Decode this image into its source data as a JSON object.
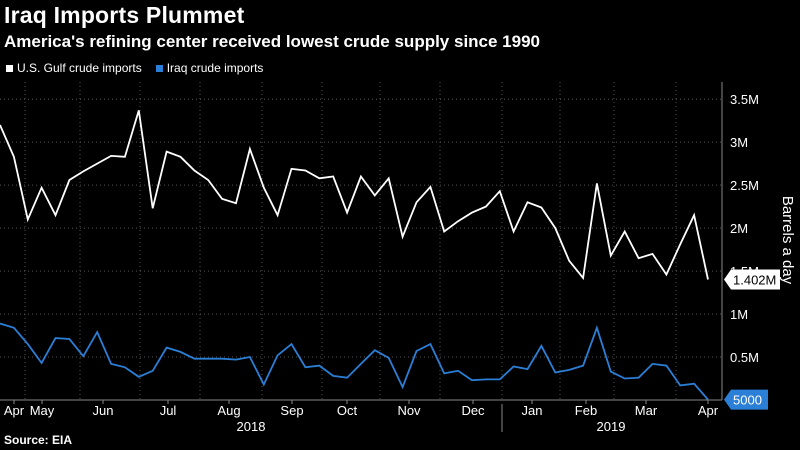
{
  "title": "Iraq Imports Plummet",
  "subtitle": "America's refining center received lowest crude supply since 1990",
  "source": "Source: EIA",
  "colors": {
    "gulf": "#ffffff",
    "iraq": "#2b7fd6",
    "grid": "#555555"
  },
  "chart_data": {
    "type": "line",
    "ylabel": "Barrels a day",
    "ylim": [
      0,
      3700000
    ],
    "y_ticks": [
      {
        "value": 500000,
        "label": "0.5M"
      },
      {
        "value": 1000000,
        "label": "1M"
      },
      {
        "value": 1500000,
        "label": "1.5M"
      },
      {
        "value": 2000000,
        "label": "2M"
      },
      {
        "value": 2500000,
        "label": "2.5M"
      },
      {
        "value": 3000000,
        "label": "3M"
      },
      {
        "value": 3500000,
        "label": "3.5M"
      }
    ],
    "x_ticks": [
      "Apr",
      "May",
      "Jun",
      "Jul",
      "Aug",
      "Sep",
      "Oct",
      "Nov",
      "Dec",
      "Jan",
      "Feb",
      "Mar",
      "Apr"
    ],
    "year_labels": [
      "2018",
      "2019"
    ],
    "grid": true,
    "legend_position": "top-left",
    "series": [
      {
        "name": "U.S. Gulf crude imports",
        "end_label": "1.402M",
        "values": [
          3200000,
          2830000,
          2100000,
          2470000,
          2150000,
          2560000,
          2660000,
          2750000,
          2840000,
          2830000,
          3370000,
          2230000,
          2890000,
          2830000,
          2670000,
          2560000,
          2340000,
          2290000,
          2920000,
          2470000,
          2150000,
          2690000,
          2670000,
          2580000,
          2600000,
          2180000,
          2600000,
          2380000,
          2580000,
          1900000,
          2300000,
          2480000,
          1960000,
          2080000,
          2180000,
          2250000,
          2430000,
          1960000,
          2300000,
          2240000,
          2000000,
          1620000,
          1420000,
          2520000,
          1680000,
          1960000,
          1650000,
          1700000,
          1460000,
          1810000,
          2150000,
          1402000
        ]
      },
      {
        "name": "Iraq crude imports",
        "end_label": "5000",
        "values": [
          890000,
          840000,
          650000,
          430000,
          720000,
          710000,
          510000,
          790000,
          420000,
          380000,
          270000,
          340000,
          610000,
          560000,
          480000,
          480000,
          480000,
          470000,
          500000,
          180000,
          520000,
          650000,
          380000,
          400000,
          280000,
          260000,
          420000,
          580000,
          490000,
          150000,
          570000,
          650000,
          310000,
          340000,
          230000,
          240000,
          240000,
          390000,
          360000,
          630000,
          320000,
          350000,
          400000,
          840000,
          330000,
          250000,
          260000,
          420000,
          400000,
          170000,
          190000,
          5000
        ]
      }
    ]
  }
}
